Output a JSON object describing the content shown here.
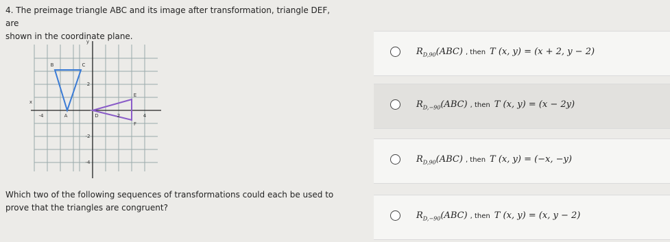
{
  "question": {
    "number": "4.",
    "prompt_1": "The preimage triangle ABC and its image after transformation, triangle DEF, are",
    "prompt_2": "shown in the coordinate plane.",
    "prompt_3": "Which two of the following sequences of transformations could each be used to",
    "prompt_4": "prove that the triangles are congruent?"
  },
  "graph": {
    "x_axis": "x",
    "y_axis": "y",
    "x_ticks": [
      "-4",
      "2",
      "4"
    ],
    "y_ticks": [
      "2",
      "-2",
      "-4"
    ],
    "points": [
      "A",
      "B",
      "C",
      "D",
      "E",
      "F"
    ]
  },
  "options": [
    {
      "rotation": "R",
      "subscript": "D,90",
      "argument": "(ABC)",
      "then": ", then",
      "transform": "T (x, y) = (x + 2, y − 2)"
    },
    {
      "rotation": "R",
      "subscript": "D,−90",
      "argument": "(ABC)",
      "then": ", then",
      "transform": "T (x, y) = (x − 2y)"
    },
    {
      "rotation": "R",
      "subscript": "D,90",
      "argument": "(ABC)",
      "then": ", then",
      "transform": "T (x, y) = (−x, −y)"
    },
    {
      "rotation": "R",
      "subscript": "D,−90",
      "argument": "(ABC)",
      "then": ", then",
      "transform": "T (x, y) = (x, y − 2)"
    }
  ]
}
